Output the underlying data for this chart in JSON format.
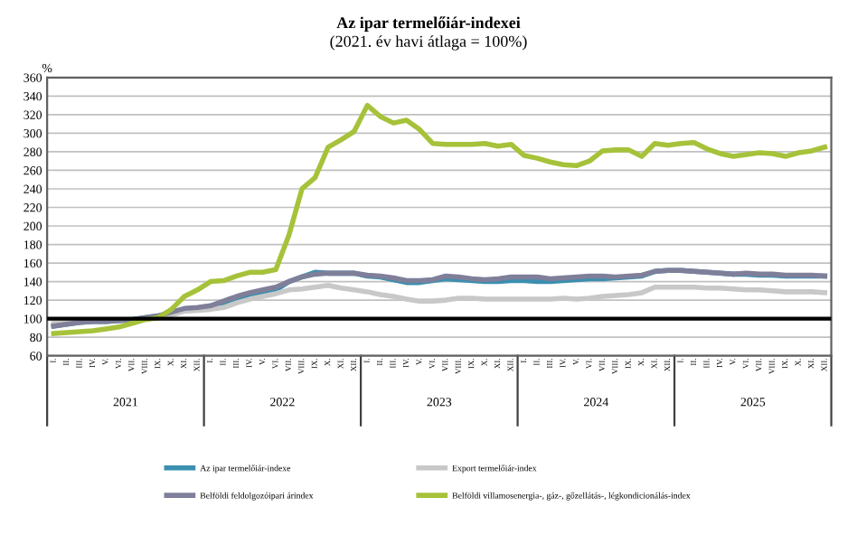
{
  "chart_data": {
    "type": "line",
    "title": "Az ipar termelőiár-indexei",
    "subtitle": "(2021. év havi átlaga = 100%)",
    "ylabel": "%",
    "categories": [
      "I.",
      "II.",
      "III.",
      "IV.",
      "V.",
      "VI.",
      "VII.",
      "VIII.",
      "IX.",
      "X.",
      "XI.",
      "XII.",
      "I.",
      "II.",
      "III.",
      "IV.",
      "V.",
      "VI.",
      "VII.",
      "VIII.",
      "IX.",
      "X.",
      "XI.",
      "XII.",
      "I.",
      "II.",
      "III.",
      "IV.",
      "V.",
      "VI.",
      "VII.",
      "VIII.",
      "IX.",
      "X.",
      "XI.",
      "XII.",
      "I.",
      "II.",
      "III.",
      "IV.",
      "V.",
      "VI.",
      "VII.",
      "VIII.",
      "IX.",
      "X.",
      "XI.",
      "XII.",
      "I.",
      "II.",
      "III.",
      "IV.",
      "V.",
      "VI.",
      "VII.",
      "VIII.",
      "IX.",
      "X.",
      "XI.",
      "XII."
    ],
    "annotations": [
      "2021",
      "2022",
      "2023",
      "2024",
      "2025"
    ],
    "ylim": [
      60,
      360
    ],
    "yticks": [
      60,
      80,
      100,
      120,
      140,
      160,
      180,
      200,
      220,
      240,
      260,
      280,
      300,
      320,
      340,
      360
    ],
    "grid": "y",
    "legend": "bottom",
    "ref_lines": [
      {
        "axis": "y",
        "value": 100,
        "color": "#000000"
      }
    ],
    "series": [
      {
        "name": "Az ipar termelőiár-indexe",
        "color": "#3b8fb0",
        "values": [
          92,
          94,
          96,
          97,
          97,
          98,
          99,
          101,
          103,
          107,
          110,
          111,
          113,
          117,
          122,
          125,
          128,
          131,
          140,
          145,
          150,
          149,
          149,
          149,
          146,
          145,
          142,
          139,
          139,
          141,
          143,
          142,
          141,
          140,
          140,
          141,
          141,
          140,
          140,
          141,
          142,
          143,
          143,
          144,
          145,
          146,
          151,
          152,
          152,
          151,
          150,
          149,
          148,
          148,
          147,
          147,
          146,
          146,
          146,
          146
        ]
      },
      {
        "name": "Export termelőiár-index",
        "color": "#c8c8c8",
        "values": [
          95,
          96,
          97,
          98,
          98,
          99,
          99,
          100,
          101,
          104,
          108,
          109,
          110,
          112,
          117,
          121,
          124,
          127,
          131,
          132,
          134,
          136,
          133,
          131,
          129,
          126,
          124,
          121,
          119,
          119,
          120,
          122,
          122,
          121,
          121,
          121,
          121,
          121,
          121,
          122,
          121,
          122,
          124,
          125,
          126,
          128,
          134,
          134,
          134,
          134,
          133,
          133,
          132,
          131,
          131,
          130,
          129,
          129,
          129,
          128
        ]
      },
      {
        "name": "Belföldi feldolgozóipari árindex",
        "color": "#7f7f9a",
        "values": [
          92,
          94,
          96,
          97,
          97,
          98,
          99,
          101,
          103,
          107,
          111,
          112,
          114,
          119,
          124,
          128,
          131,
          134,
          140,
          145,
          148,
          149,
          149,
          149,
          147,
          146,
          144,
          141,
          141,
          142,
          146,
          145,
          143,
          142,
          143,
          145,
          145,
          145,
          143,
          144,
          145,
          146,
          146,
          145,
          146,
          147,
          151,
          152,
          152,
          151,
          150,
          149,
          148,
          149,
          148,
          148,
          147,
          147,
          147,
          146
        ]
      },
      {
        "name": "Belföldi villamosenergia-, gáz-, gőzellátás-, légkondicionálás-index",
        "color": "#a6c23a",
        "values": [
          84,
          85,
          86,
          87,
          89,
          91,
          95,
          99,
          101,
          110,
          124,
          131,
          140,
          141,
          146,
          150,
          150,
          153,
          190,
          240,
          252,
          285,
          293,
          302,
          330,
          318,
          311,
          314,
          304,
          289,
          288,
          288,
          288,
          289,
          286,
          288,
          276,
          273,
          269,
          266,
          265,
          270,
          281,
          282,
          282,
          275,
          289,
          287,
          289,
          290,
          283,
          278,
          275,
          277,
          279,
          278,
          275,
          279,
          281,
          285
        ]
      }
    ]
  }
}
